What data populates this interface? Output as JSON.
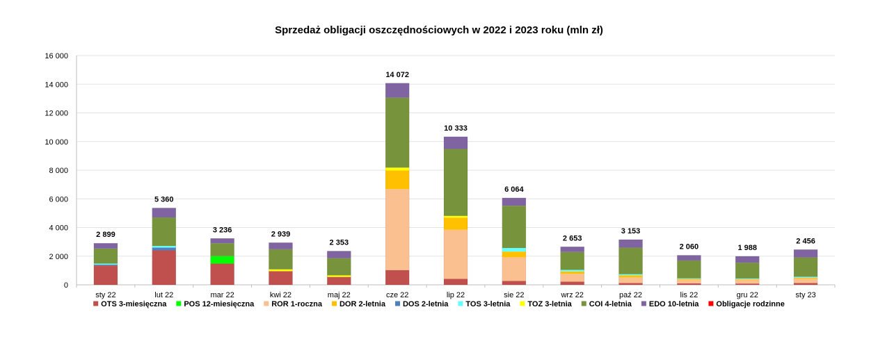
{
  "chart_data": {
    "type": "bar",
    "stacked": true,
    "title": "Sprzedaż obligacji oszczędnościowych w 2022 i 2023 roku (mln zł)",
    "ylim": [
      0,
      16000
    ],
    "yticks": [
      0,
      2000,
      4000,
      6000,
      8000,
      10000,
      12000,
      14000,
      16000
    ],
    "ytick_labels": [
      "0",
      "2 000",
      "4 000",
      "6 000",
      "8 000",
      "10 000",
      "12 000",
      "14 000",
      "16 000"
    ],
    "grid": true,
    "legend_position": "bottom",
    "categories": [
      "sty 22",
      "lut 22",
      "mar 22",
      "kwi 22",
      "maj 22",
      "cze 22",
      "lip 22",
      "sie 22",
      "wrz 22",
      "paź 22",
      "lis 22",
      "gru 22",
      "sty 23"
    ],
    "totals": [
      2899,
      5360,
      3236,
      2939,
      2353,
      14072,
      10333,
      6064,
      2653,
      3153,
      2060,
      1988,
      2456
    ],
    "total_labels": [
      "2 899",
      "5 360",
      "3 236",
      "2 939",
      "2 353",
      "14 072",
      "10 333",
      "6 064",
      "2 653",
      "3 153",
      "2 060",
      "1 988",
      "2 456"
    ],
    "series": [
      {
        "name": "OTS 3-miesięczna",
        "color": "#C0504D",
        "values": [
          1350,
          2400,
          1480,
          950,
          550,
          1030,
          420,
          270,
          220,
          120,
          100,
          90,
          130
        ]
      },
      {
        "name": "POS 12-miesięczna",
        "color": "#00FF00",
        "values": [
          0,
          0,
          520,
          0,
          0,
          0,
          0,
          0,
          0,
          0,
          0,
          0,
          0
        ]
      },
      {
        "name": "ROR 1-roczna",
        "color": "#FAC090",
        "values": [
          0,
          0,
          0,
          0,
          0,
          5650,
          3420,
          1650,
          550,
          400,
          250,
          260,
          300
        ]
      },
      {
        "name": "DOR 2-letnia",
        "color": "#FFC000",
        "values": [
          0,
          0,
          0,
          0,
          0,
          1300,
          850,
          400,
          160,
          140,
          60,
          50,
          70
        ]
      },
      {
        "name": "DOS 2-letnia",
        "color": "#4F81BD",
        "values": [
          60,
          200,
          0,
          0,
          0,
          0,
          0,
          0,
          0,
          0,
          0,
          0,
          0
        ]
      },
      {
        "name": "TOS 3-letnia",
        "color": "#66FFFF",
        "values": [
          70,
          110,
          0,
          0,
          0,
          0,
          0,
          250,
          110,
          80,
          40,
          40,
          60
        ]
      },
      {
        "name": "TOZ 3-letnia",
        "color": "#FFFF00",
        "values": [
          0,
          0,
          0,
          130,
          110,
          200,
          120,
          0,
          0,
          0,
          0,
          0,
          0
        ]
      },
      {
        "name": "COI 4-letnia",
        "color": "#77933C",
        "values": [
          1050,
          1990,
          900,
          1400,
          1200,
          4880,
          4670,
          2950,
          1250,
          1850,
          1250,
          1100,
          1350
        ]
      },
      {
        "name": "EDO 10-letnia",
        "color": "#8064A2",
        "values": [
          369,
          660,
          336,
          459,
          493,
          1012,
          853,
          544,
          363,
          563,
          360,
          448,
          546
        ]
      },
      {
        "name": "Obligacje rodzinne",
        "color": "#FF0000",
        "values": [
          0,
          0,
          0,
          0,
          0,
          0,
          0,
          0,
          0,
          0,
          0,
          0,
          0
        ]
      }
    ]
  }
}
